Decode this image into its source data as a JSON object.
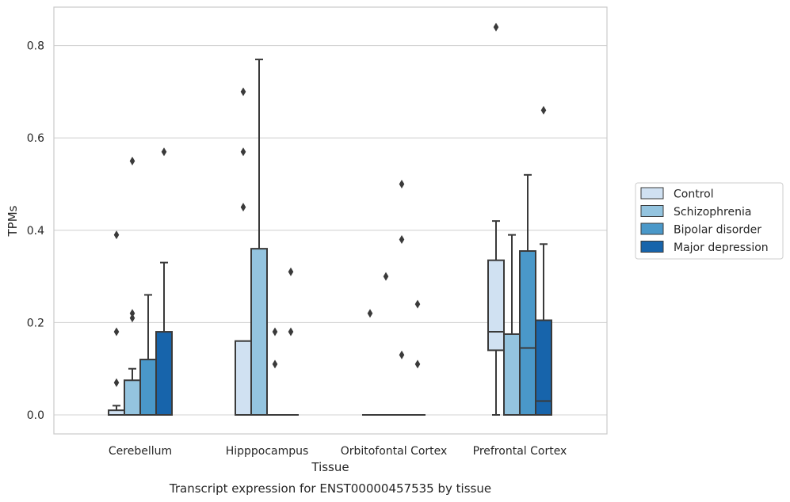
{
  "chart_data": {
    "type": "box",
    "xlabel": "Tissue",
    "ylabel": "TPMs",
    "caption": "Transcript expression for ENST00000457535 by tissue",
    "categories": [
      "Cerebellum",
      "Hipppocampus",
      "Orbitofontal Cortex",
      "Prefrontal Cortex"
    ],
    "ylim": [
      -0.04,
      0.885
    ],
    "yticks": [
      0.0,
      0.2,
      0.4,
      0.6,
      0.8
    ],
    "ytick_labels": [
      "0.0",
      "0.2",
      "0.4",
      "0.6",
      "0.8"
    ],
    "grid": "horizontal",
    "legend_position": "right",
    "series": [
      {
        "name": "Control",
        "color": "#d0e1f2",
        "boxes": [
          {
            "q1": 0.0,
            "median": 0.0,
            "q3": 0.01,
            "whislo": 0.0,
            "whishi": 0.02,
            "fliers": [
              0.07,
              0.18,
              0.39
            ]
          },
          {
            "q1": 0.0,
            "median": 0.0,
            "q3": 0.16,
            "whislo": 0.0,
            "whishi": 0.16,
            "fliers": [
              0.45,
              0.57,
              0.7
            ]
          },
          {
            "q1": 0.0,
            "median": 0.0,
            "q3": 0.0,
            "whislo": 0.0,
            "whishi": 0.0,
            "fliers": [
              0.22
            ]
          },
          {
            "q1": 0.14,
            "median": 0.18,
            "q3": 0.335,
            "whislo": 0.0,
            "whishi": 0.42,
            "fliers": [
              0.84
            ]
          }
        ]
      },
      {
        "name": "Schizophrenia",
        "color": "#94c4df",
        "boxes": [
          {
            "q1": 0.0,
            "median": 0.0,
            "q3": 0.075,
            "whislo": 0.0,
            "whishi": 0.1,
            "fliers": [
              0.21,
              0.22,
              0.55
            ]
          },
          {
            "q1": 0.0,
            "median": 0.0,
            "q3": 0.36,
            "whislo": 0.0,
            "whishi": 0.77,
            "fliers": []
          },
          {
            "q1": 0.0,
            "median": 0.0,
            "q3": 0.0,
            "whislo": 0.0,
            "whishi": 0.0,
            "fliers": [
              0.3
            ]
          },
          {
            "q1": 0.0,
            "median": 0.0,
            "q3": 0.175,
            "whislo": 0.0,
            "whishi": 0.39,
            "fliers": []
          }
        ]
      },
      {
        "name": "Bipolar disorder",
        "color": "#4a98c9",
        "boxes": [
          {
            "q1": 0.0,
            "median": 0.0,
            "q3": 0.12,
            "whislo": 0.0,
            "whishi": 0.26,
            "fliers": []
          },
          {
            "q1": 0.0,
            "median": 0.0,
            "q3": 0.0,
            "whislo": 0.0,
            "whishi": 0.0,
            "fliers": [
              0.11,
              0.18
            ]
          },
          {
            "q1": 0.0,
            "median": 0.0,
            "q3": 0.0,
            "whislo": 0.0,
            "whishi": 0.0,
            "fliers": [
              0.13,
              0.38,
              0.5
            ]
          },
          {
            "q1": 0.0,
            "median": 0.145,
            "q3": 0.355,
            "whislo": 0.0,
            "whishi": 0.52,
            "fliers": []
          }
        ]
      },
      {
        "name": "Major depression",
        "color": "#1764ab",
        "boxes": [
          {
            "q1": 0.0,
            "median": 0.0,
            "q3": 0.18,
            "whislo": 0.0,
            "whishi": 0.33,
            "fliers": [
              0.57
            ]
          },
          {
            "q1": 0.0,
            "median": 0.0,
            "q3": 0.0,
            "whislo": 0.0,
            "whishi": 0.0,
            "fliers": [
              0.18,
              0.31
            ]
          },
          {
            "q1": 0.0,
            "median": 0.0,
            "q3": 0.0,
            "whislo": 0.0,
            "whishi": 0.0,
            "fliers": [
              0.11,
              0.24
            ]
          },
          {
            "q1": 0.0,
            "median": 0.03,
            "q3": 0.205,
            "whislo": 0.0,
            "whishi": 0.37,
            "fliers": [
              0.66
            ]
          }
        ]
      }
    ]
  }
}
